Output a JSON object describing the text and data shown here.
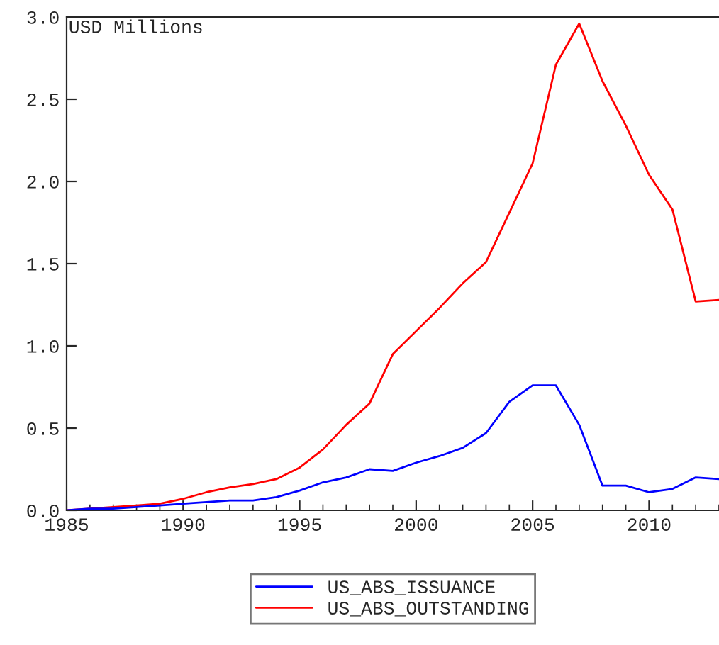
{
  "chart_data": {
    "type": "line",
    "ylabel": "USD Millions",
    "x": [
      1985,
      1986,
      1987,
      1988,
      1989,
      1990,
      1991,
      1992,
      1993,
      1994,
      1995,
      1996,
      1997,
      1998,
      1999,
      2000,
      2001,
      2002,
      2003,
      2004,
      2005,
      2006,
      2007,
      2008,
      2009,
      2010,
      2011,
      2012,
      2013
    ],
    "series": [
      {
        "name": "US_ABS_ISSUANCE",
        "color": "#0000ff",
        "values": [
          0,
          0.01,
          0.01,
          0.02,
          0.03,
          0.04,
          0.05,
          0.06,
          0.06,
          0.08,
          0.12,
          0.17,
          0.2,
          0.25,
          0.24,
          0.29,
          0.33,
          0.38,
          0.47,
          0.66,
          0.76,
          0.76,
          0.52,
          0.15,
          0.15,
          0.11,
          0.13,
          0.2,
          0.19
        ]
      },
      {
        "name": "US_ABS_OUTSTANDING",
        "color": "#ff0000",
        "values": [
          0,
          0.01,
          0.02,
          0.03,
          0.04,
          0.07,
          0.11,
          0.14,
          0.16,
          0.19,
          0.26,
          0.37,
          0.52,
          0.65,
          0.95,
          1.09,
          1.23,
          1.38,
          1.51,
          1.81,
          2.11,
          2.71,
          2.96,
          2.61,
          2.34,
          2.04,
          1.83,
          1.27,
          1.28
        ]
      }
    ],
    "xlim": [
      1985,
      2013
    ],
    "xticks": [
      1985,
      1990,
      1995,
      2000,
      2005,
      2010
    ],
    "ylim": [
      0,
      3.0
    ],
    "yticks": [
      {
        "value": 0,
        "label": "0.0"
      },
      {
        "value": 0.5,
        "label": "0.5"
      },
      {
        "value": 1.0,
        "label": "1.0"
      },
      {
        "value": 1.5,
        "label": "1.5"
      },
      {
        "value": 2.0,
        "label": "2.0"
      },
      {
        "value": 2.5,
        "label": "2.5"
      },
      {
        "value": 3.0,
        "label": "3.0"
      }
    ],
    "legend": "bottom",
    "grid": false,
    "line_style": "solid"
  }
}
